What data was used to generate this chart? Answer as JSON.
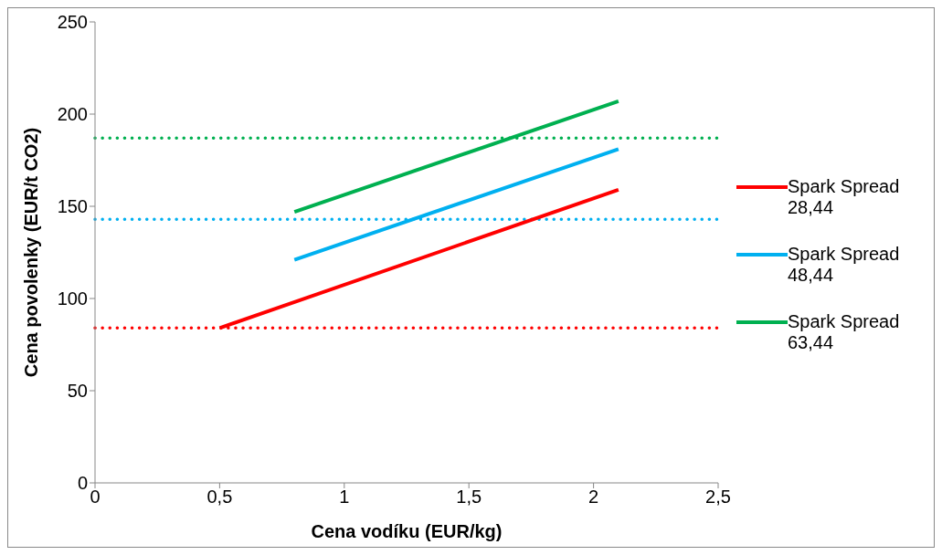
{
  "chart_data": {
    "type": "line",
    "xlabel": "Cena vodíku (EUR/kg)",
    "ylabel": "Cena povolenky (EUR/t CO2)",
    "xlim": [
      0,
      2.5
    ],
    "xticks": [
      0,
      {
        "value": 0.5,
        "label": "0,5"
      },
      1,
      {
        "value": 1.5,
        "label": "1,5"
      },
      2,
      {
        "value": 2.5,
        "label": "2,5"
      }
    ],
    "ylim": [
      0,
      250
    ],
    "yticks": [
      0,
      50,
      100,
      150,
      200,
      250
    ],
    "grid": false,
    "legend": "right",
    "marker": "none",
    "line_style": "solid",
    "series": [
      {
        "name": "Spark Spread 28,44",
        "color": "#ff0000",
        "x": [
          0.5,
          2.1
        ],
        "values": [
          84,
          159
        ]
      },
      {
        "name": "Spark Spread 48,44",
        "color": "#00b0f0",
        "x": [
          0.8,
          2.1
        ],
        "values": [
          121,
          181
        ]
      },
      {
        "name": "Spark Spread 63,44",
        "color": "#00b050",
        "x": [
          0.8,
          2.1
        ],
        "values": [
          147,
          207
        ]
      }
    ],
    "ref_lines": [
      {
        "axis": "y",
        "value": 84,
        "color": "#ff0000",
        "line_style": "dotted"
      },
      {
        "axis": "y",
        "value": 143,
        "color": "#00b0f0",
        "line_style": "dotted"
      },
      {
        "axis": "y",
        "value": 187,
        "color": "#00b050",
        "line_style": "dotted"
      }
    ]
  }
}
